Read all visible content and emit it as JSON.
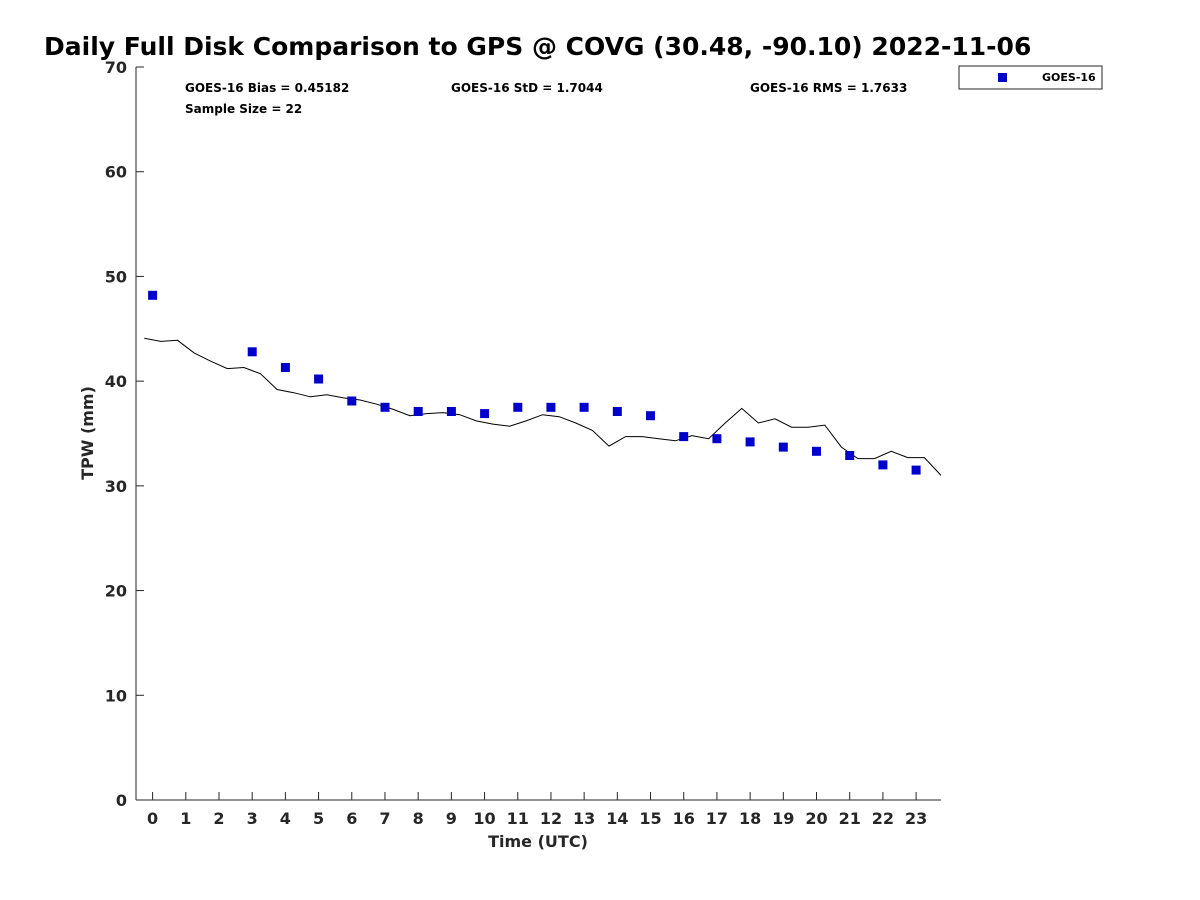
{
  "chart_data": {
    "type": "scatter",
    "title": "Daily Full Disk Comparison to GPS @ COVG (30.48, -90.10) 2022-11-06",
    "xlabel": "Time (UTC)",
    "ylabel": "TPW (mm)",
    "xlim": [
      -0.5,
      23.75
    ],
    "ylim": [
      0,
      70
    ],
    "xticks": [
      0,
      1,
      2,
      3,
      4,
      5,
      6,
      7,
      8,
      9,
      10,
      11,
      12,
      13,
      14,
      15,
      16,
      17,
      18,
      19,
      20,
      21,
      22,
      23
    ],
    "yticks": [
      0,
      10,
      20,
      30,
      40,
      50,
      60,
      70
    ],
    "grid": false,
    "legend_position": "top-right",
    "stats": {
      "bias": "GOES-16 Bias = 0.45182",
      "std": "GOES-16 StD = 1.7044",
      "rms": "GOES-16 RMS = 1.7633",
      "sample_size": "Sample Size = 22"
    },
    "series": [
      {
        "name": "GOES-16",
        "kind": "scatter",
        "marker": "square",
        "color": "#0000cd",
        "x": [
          0,
          3,
          4,
          5,
          6,
          7,
          8,
          9,
          10,
          11,
          12,
          13,
          14,
          15,
          16,
          17,
          18,
          19,
          20,
          21,
          22,
          23
        ],
        "y": [
          48.2,
          42.8,
          41.3,
          40.2,
          38.1,
          37.5,
          37.1,
          37.1,
          36.9,
          37.5,
          37.5,
          37.5,
          37.1,
          36.7,
          34.7,
          34.5,
          34.2,
          33.7,
          33.3,
          32.9,
          32.0,
          31.5
        ]
      },
      {
        "kind": "line",
        "color": "#000000",
        "x": [
          -0.25,
          0.25,
          0.75,
          1.25,
          1.75,
          2.25,
          2.75,
          3.25,
          3.75,
          4.25,
          4.75,
          5.25,
          5.75,
          6.25,
          6.75,
          7.25,
          7.75,
          8.25,
          8.75,
          9.25,
          9.75,
          10.25,
          10.75,
          11.25,
          11.75,
          12.25,
          12.75,
          13.25,
          13.75,
          14.25,
          14.75,
          15.25,
          15.75,
          16.25,
          16.75,
          17.25,
          17.75,
          18.25,
          18.75,
          19.25,
          19.75,
          20.25,
          20.75,
          21.25,
          21.75,
          22.25,
          22.75,
          23.25,
          23.75
        ],
        "y": [
          44.1,
          43.8,
          43.9,
          42.7,
          41.9,
          41.2,
          41.3,
          40.7,
          39.2,
          38.9,
          38.5,
          38.7,
          38.4,
          38.2,
          37.8,
          37.3,
          36.7,
          36.9,
          37.0,
          36.8,
          36.2,
          35.9,
          35.7,
          36.2,
          36.8,
          36.6,
          36.0,
          35.3,
          33.8,
          34.7,
          34.7,
          34.5,
          34.3,
          34.8,
          34.5,
          36.0,
          37.4,
          36.0,
          36.4,
          35.6,
          35.6,
          35.8,
          33.7,
          32.6,
          32.6,
          33.3,
          32.7,
          32.7,
          31.0
        ]
      }
    ]
  }
}
